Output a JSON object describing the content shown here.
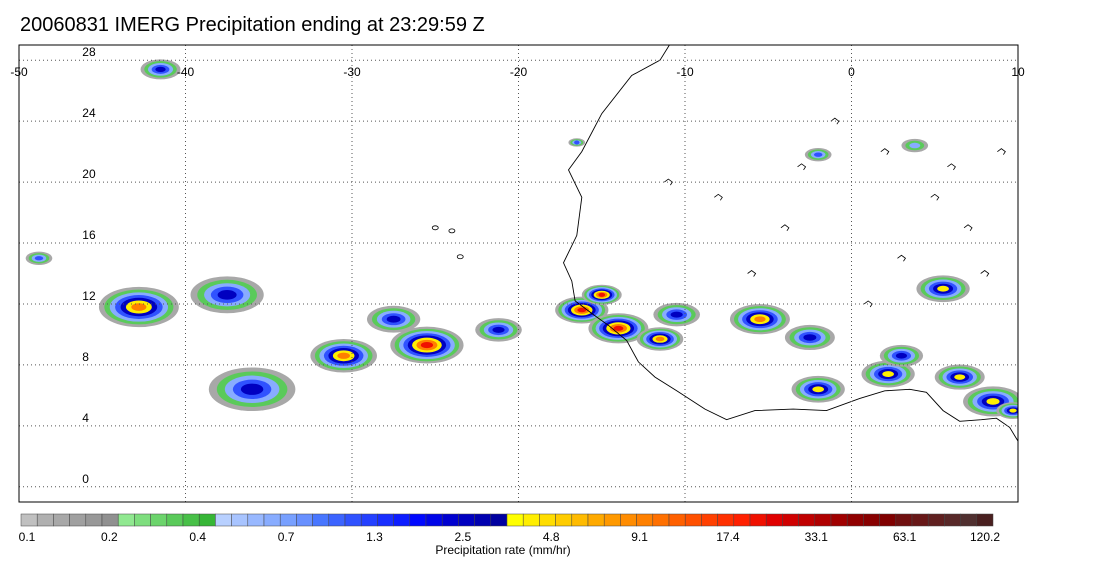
{
  "title": "20060831 IMERG Precipitation ending at 23:29:59 Z",
  "map": {
    "lon_range": [
      -50,
      10
    ],
    "lat_range": [
      -1,
      29
    ],
    "lon_ticks": [
      -50,
      -40,
      -30,
      -20,
      -10,
      0,
      10
    ],
    "lat_ticks": [
      0,
      4,
      8,
      12,
      16,
      20,
      24,
      28
    ],
    "lon_tick_labels": [
      "-50",
      "-40",
      "-30",
      "-20",
      "-10",
      "0",
      "10"
    ],
    "lat_tick_labels": [
      "0",
      "4",
      "8",
      "12",
      "16",
      "20",
      "24",
      "28"
    ],
    "grid": "dotted"
  },
  "colorbar": {
    "label": "Precipitation rate (mm/hr)",
    "tick_labels": [
      "0.1",
      "0.2",
      "0.4",
      "0.7",
      "1.3",
      "2.5",
      "4.8",
      "9.1",
      "17.4",
      "33.1",
      "63.1",
      "120.2"
    ],
    "colors": [
      "#c0c0c0",
      "#b0b0b0",
      "#a8a8a8",
      "#a0a0a0",
      "#989898",
      "#909090",
      "#90e890",
      "#7ede7e",
      "#6cd46c",
      "#5aca5a",
      "#48c048",
      "#36b636",
      "#b8d0ff",
      "#a8c4ff",
      "#98b8ff",
      "#88acff",
      "#78a0ff",
      "#6890ff",
      "#4876ff",
      "#3c64ff",
      "#3052ff",
      "#2440ff",
      "#182eff",
      "#0c1cff",
      "#0008ff",
      "#0004e8",
      "#0000d0",
      "#0000c0",
      "#0000b0",
      "#0000a0",
      "#ffff00",
      "#ffee00",
      "#ffdd00",
      "#ffcc00",
      "#ffbb00",
      "#ffaa00",
      "#ff9900",
      "#ff8c00",
      "#ff8000",
      "#ff7000",
      "#ff6000",
      "#ff5000",
      "#ff4000",
      "#ff3000",
      "#ff2000",
      "#f01000",
      "#e00000",
      "#d00000",
      "#c00000",
      "#b00000",
      "#a00000",
      "#900000",
      "#880000",
      "#800000",
      "#701010",
      "#681818",
      "#602020",
      "#582828",
      "#503030",
      "#4a2020"
    ]
  },
  "rain_cells": [
    {
      "lon": -41.5,
      "lat": 27.4,
      "r": 1.2,
      "peak": 3
    },
    {
      "lon": -48.8,
      "lat": 15.0,
      "r": 0.8,
      "peak": 2
    },
    {
      "lon": -42.8,
      "lat": 11.8,
      "r": 2.4,
      "peak": 5
    },
    {
      "lon": -37.5,
      "lat": 12.6,
      "r": 2.2,
      "peak": 3
    },
    {
      "lon": -36.0,
      "lat": 6.4,
      "r": 2.6,
      "peak": 3
    },
    {
      "lon": -30.5,
      "lat": 8.6,
      "r": 2.0,
      "peak": 5
    },
    {
      "lon": -25.5,
      "lat": 9.3,
      "r": 2.2,
      "peak": 6
    },
    {
      "lon": -27.5,
      "lat": 11.0,
      "r": 1.6,
      "peak": 3
    },
    {
      "lon": -21.2,
      "lat": 10.3,
      "r": 1.4,
      "peak": 3
    },
    {
      "lon": -16.2,
      "lat": 11.6,
      "r": 1.6,
      "peak": 6
    },
    {
      "lon": -15.0,
      "lat": 12.6,
      "r": 1.2,
      "peak": 6
    },
    {
      "lon": -14.0,
      "lat": 10.4,
      "r": 1.8,
      "peak": 6
    },
    {
      "lon": -11.5,
      "lat": 9.7,
      "r": 1.4,
      "peak": 5
    },
    {
      "lon": -10.5,
      "lat": 11.3,
      "r": 1.4,
      "peak": 3
    },
    {
      "lon": -5.5,
      "lat": 11.0,
      "r": 1.8,
      "peak": 5
    },
    {
      "lon": -2.5,
      "lat": 9.8,
      "r": 1.5,
      "peak": 3
    },
    {
      "lon": -2.0,
      "lat": 6.4,
      "r": 1.6,
      "peak": 4
    },
    {
      "lon": 2.2,
      "lat": 7.4,
      "r": 1.6,
      "peak": 4
    },
    {
      "lon": 3.0,
      "lat": 8.6,
      "r": 1.3,
      "peak": 3
    },
    {
      "lon": 5.5,
      "lat": 13.0,
      "r": 1.6,
      "peak": 4
    },
    {
      "lon": 6.5,
      "lat": 7.2,
      "r": 1.5,
      "peak": 4
    },
    {
      "lon": 8.5,
      "lat": 5.6,
      "r": 1.8,
      "peak": 4
    },
    {
      "lon": 9.7,
      "lat": 5.0,
      "r": 1.0,
      "peak": 4
    },
    {
      "lon": -2.0,
      "lat": 21.8,
      "r": 0.8,
      "peak": 2
    },
    {
      "lon": 3.8,
      "lat": 22.4,
      "r": 0.8,
      "peak": 1
    },
    {
      "lon": -16.5,
      "lat": 22.6,
      "r": 0.5,
      "peak": 2
    }
  ]
}
